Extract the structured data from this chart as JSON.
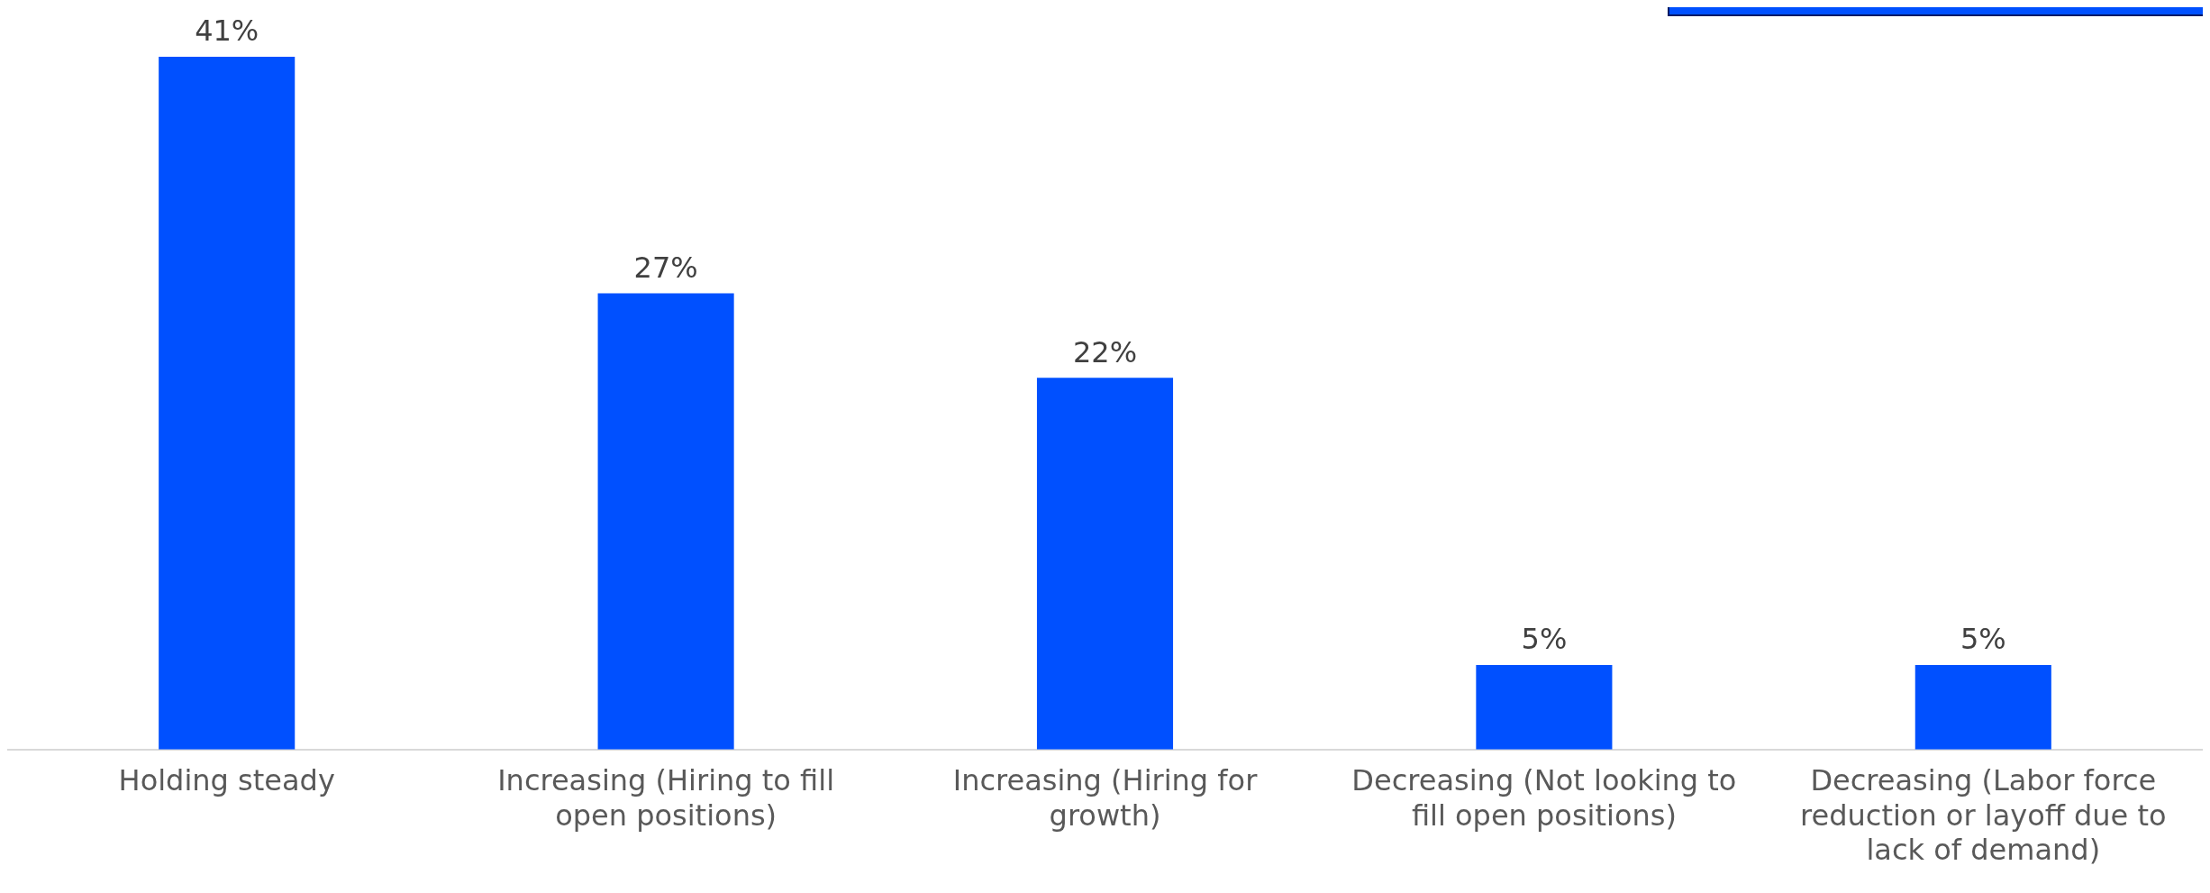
{
  "chart_data": {
    "type": "bar",
    "categories": [
      "Holding steady",
      "Increasing (Hiring to fill open positions)",
      "Increasing (Hiring for growth)",
      "Decreasing (Not looking to fill open positions)",
      "Decreasing (Labor force reduction or layoff due to lack of demand)"
    ],
    "values": [
      41,
      27,
      22,
      5,
      5
    ],
    "value_labels": [
      "41%",
      "27%",
      "22%",
      "5%",
      "5%"
    ],
    "color": "#0050ff",
    "grid": false,
    "legend": false
  }
}
